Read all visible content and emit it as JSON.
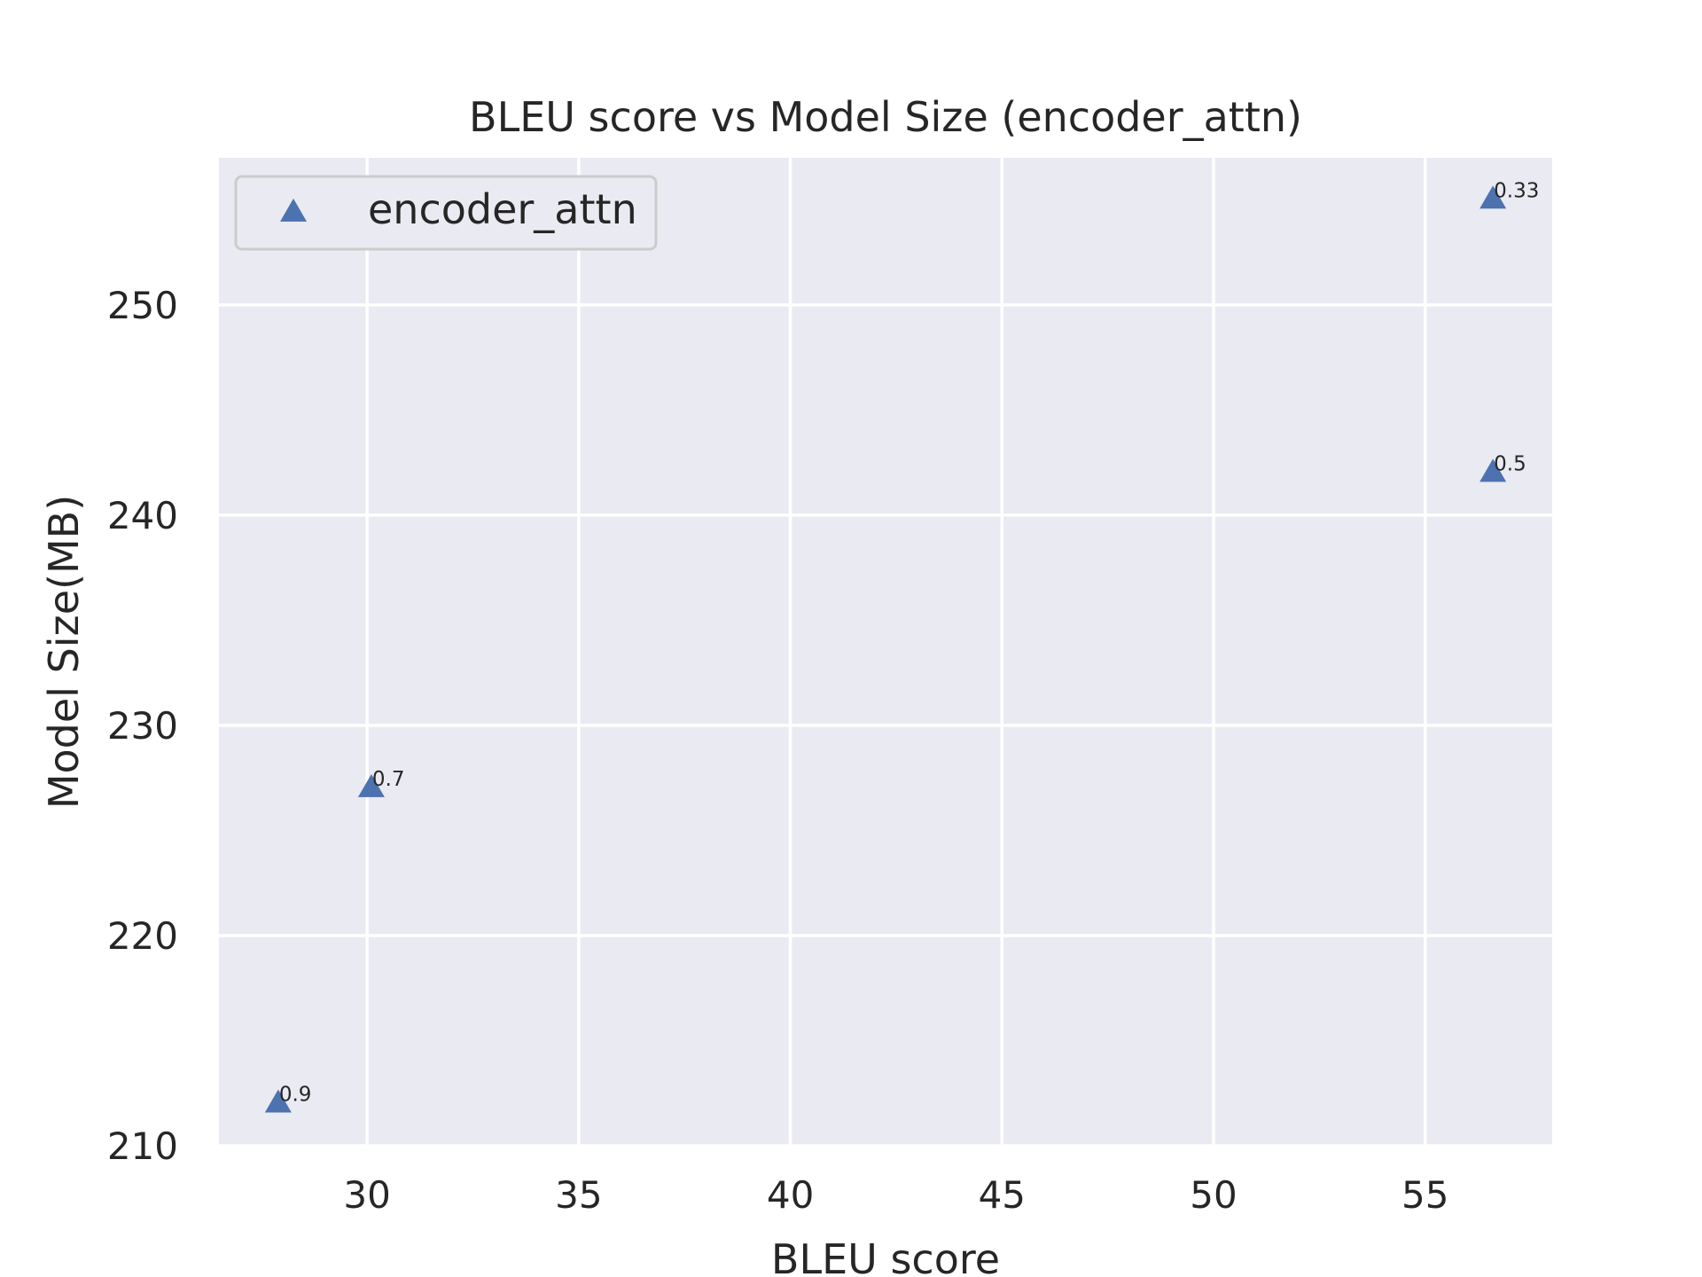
{
  "chart_data": {
    "type": "scatter",
    "title": "BLEU score vs Model Size (encoder_attn)",
    "xlabel": "BLEU score",
    "ylabel": "Model Size(MB)",
    "xlim": [
      26.5,
      58.0
    ],
    "ylim": [
      210,
      257
    ],
    "xticks": [
      30,
      35,
      40,
      45,
      50,
      55
    ],
    "yticks": [
      210,
      220,
      230,
      240,
      250
    ],
    "grid": true,
    "legend_position": "top-left",
    "series": [
      {
        "name": "encoder_attn",
        "marker": "triangle",
        "color": "#4c72b0",
        "points": [
          {
            "x": 27.9,
            "y": 212,
            "label": "0.9"
          },
          {
            "x": 30.1,
            "y": 227,
            "label": "0.7"
          },
          {
            "x": 56.6,
            "y": 242,
            "label": "0.5"
          },
          {
            "x": 56.6,
            "y": 255,
            "label": "0.33"
          }
        ]
      }
    ],
    "background_color": "#eaeaf2",
    "grid_color": "#ffffff"
  }
}
